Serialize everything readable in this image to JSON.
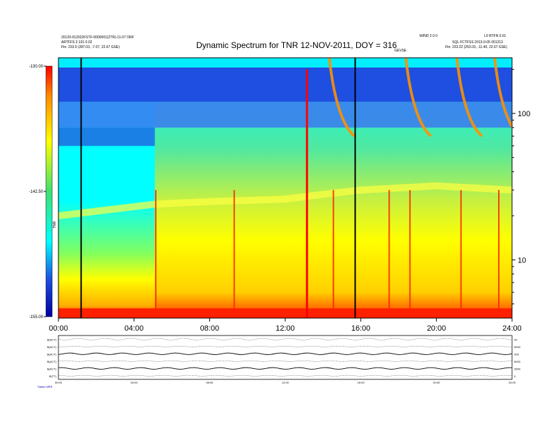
{
  "header": {
    "left_line1": "20120-012022FSTF-0000001(2TR)-11-07 ORF",
    "left_line2": "ARTFFS 2.101 0.02",
    "left_line3": "Ftn:  233.0 (287.03, -7.07, 22.67 GSE)",
    "right_line1": "WIND 2.0 0",
    "right_line2": "L0 RTFN 0.01",
    "right_line3": "SQL FCTFSS 2013-0-05 001213",
    "right_line4": "Ftn:  233.22 (253.03, -11.40, 22.67 GSE)",
    "event_label": "GEVSE",
    "bottom_left": "Status  MRS"
  },
  "chart_data": {
    "type": "heatmap",
    "title": "Dynamic Spectrum for TNR 12-NOV-2011, DOY = 316",
    "x_ticks": [
      "00:00",
      "04:00",
      "08:00",
      "12:00",
      "16:00",
      "20:00",
      "24:00"
    ],
    "x_range_hours": [
      0,
      24
    ],
    "y_scale": "log",
    "y_ticks": [
      10,
      100
    ],
    "y_range": [
      4,
      240
    ],
    "colorbar": {
      "label": "TNR",
      "ticks": [
        "-130.00",
        "-142.50",
        "-155.00"
      ],
      "range": [
        -155,
        -130
      ],
      "colors": [
        "#0000a0",
        "#1e4fe0",
        "#00ffff",
        "#40e070",
        "#ffff00",
        "#ff8c00",
        "#ff0000"
      ]
    },
    "markers_hours": [
      1.2,
      15.7
    ],
    "bursts": [
      {
        "hour": 5.15,
        "kind": "bright line"
      },
      {
        "hour": 9.3,
        "kind": "bright line"
      },
      {
        "hour": 13.15,
        "kind": "intense burst"
      },
      {
        "hour": 14.55,
        "kind": "drift burst"
      },
      {
        "hour": 17.5,
        "kind": "burst"
      },
      {
        "hour": 18.6,
        "kind": "drift burst"
      },
      {
        "hour": 21.3,
        "kind": "drift burst"
      },
      {
        "hour": 23.3,
        "kind": "drift burst"
      }
    ],
    "bottom_panel": {
      "left_labels": [
        "B(ACT)",
        "B(ACT)",
        "B(ACT)",
        "B(ACT)",
        "B(ACT)",
        "B(TT)"
      ],
      "right_labels": [
        "20",
        "5000",
        "200",
        "5000",
        "2500",
        "0"
      ],
      "x_ticks": [
        "00:00",
        "04:00",
        "08:00",
        "12:00",
        "16:00",
        "20:00",
        "24:00"
      ]
    }
  }
}
